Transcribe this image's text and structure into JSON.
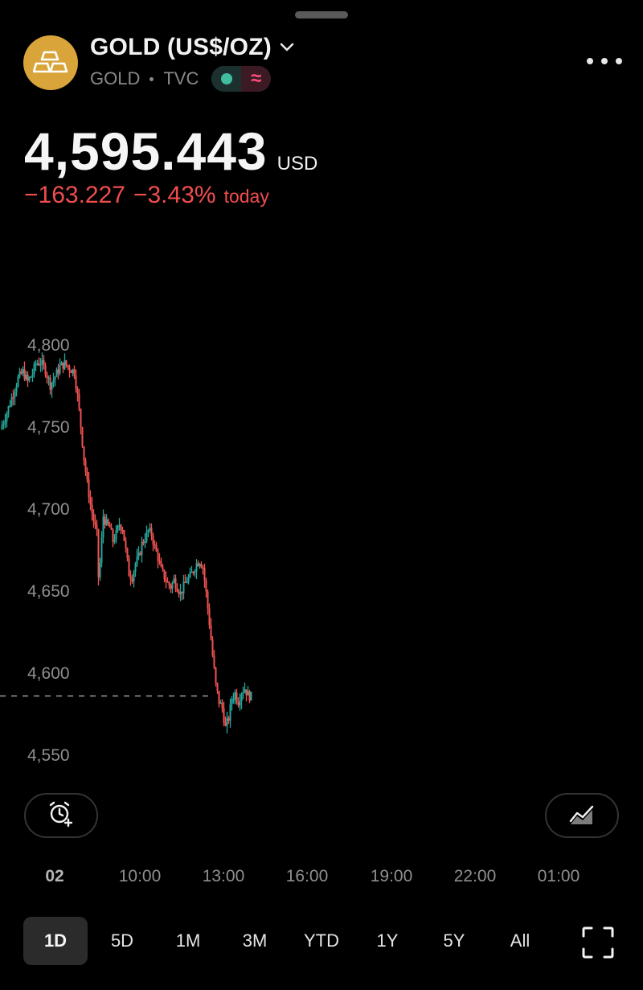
{
  "header": {
    "title": "GOLD (US$/OZ)",
    "symbol": "GOLD",
    "exchange": "TVC",
    "logo_icon": "gold-bars-icon",
    "logo_color": "#d9a53a"
  },
  "quote": {
    "price": "4,595.443",
    "currency": "USD",
    "change_abs": "−163.227",
    "change_pct": "−3.43%",
    "change_suffix": "today",
    "change_color": "#f04d4d"
  },
  "chart_data": {
    "type": "candlestick",
    "y_ticks": [
      "4,800",
      "4,750",
      "4,700",
      "4,650",
      "4,600",
      "4,550"
    ],
    "x_ticks": [
      "02",
      "10:00",
      "13:00",
      "16:00",
      "19:00",
      "22:00",
      "01:00"
    ],
    "last_price_line": 4595.4,
    "up_color": "#26a69a",
    "down_color": "#ef5350",
    "path": [
      [
        0,
        4758
      ],
      [
        4,
        4768
      ],
      [
        8,
        4780
      ],
      [
        11,
        4789
      ],
      [
        14,
        4793
      ],
      [
        17,
        4787
      ],
      [
        20,
        4792
      ],
      [
        22,
        4798
      ],
      [
        25,
        4799
      ],
      [
        28,
        4794
      ],
      [
        31,
        4785
      ],
      [
        34,
        4790
      ],
      [
        37,
        4796
      ],
      [
        40,
        4798
      ],
      [
        43,
        4795
      ],
      [
        46,
        4793
      ],
      [
        48,
        4778
      ],
      [
        50,
        4760
      ],
      [
        52,
        4740
      ],
      [
        54,
        4725
      ],
      [
        56,
        4712
      ],
      [
        58,
        4702
      ],
      [
        60,
        4694
      ],
      [
        61,
        4668
      ],
      [
        62,
        4676
      ],
      [
        64,
        4705
      ],
      [
        66,
        4700
      ],
      [
        68,
        4698
      ],
      [
        70,
        4690
      ],
      [
        72,
        4694
      ],
      [
        74,
        4700
      ],
      [
        76,
        4698
      ],
      [
        78,
        4684
      ],
      [
        80,
        4670
      ],
      [
        82,
        4668
      ],
      [
        84,
        4676
      ],
      [
        86,
        4680
      ],
      [
        88,
        4688
      ],
      [
        90,
        4692
      ],
      [
        92,
        4696
      ],
      [
        94,
        4694
      ],
      [
        96,
        4686
      ],
      [
        98,
        4680
      ],
      [
        100,
        4672
      ],
      [
        102,
        4668
      ],
      [
        104,
        4664
      ],
      [
        106,
        4662
      ],
      [
        108,
        4666
      ],
      [
        110,
        4662
      ],
      [
        112,
        4658
      ],
      [
        114,
        4662
      ],
      [
        116,
        4666
      ],
      [
        118,
        4668
      ],
      [
        120,
        4672
      ],
      [
        122,
        4676
      ],
      [
        124,
        4678
      ],
      [
        126,
        4674
      ],
      [
        128,
        4658
      ],
      [
        130,
        4640
      ],
      [
        132,
        4620
      ],
      [
        134,
        4602
      ],
      [
        136,
        4592
      ],
      [
        138,
        4588
      ],
      [
        140,
        4576
      ],
      [
        142,
        4582
      ],
      [
        144,
        4594
      ],
      [
        146,
        4597
      ],
      [
        148,
        4592
      ],
      [
        150,
        4598
      ],
      [
        152,
        4600
      ],
      [
        154,
        4596
      ],
      [
        156,
        4595
      ]
    ],
    "x_range": [
      0,
      390
    ],
    "y_range": [
      4545,
      4805
    ]
  },
  "controls": {
    "alert_button_icon": "alarm-add-icon",
    "indicator_button_icon": "chart-area-icon",
    "fullscreen_icon": "fullscreen-icon"
  },
  "ranges": [
    {
      "label": "1D",
      "active": true
    },
    {
      "label": "5D",
      "active": false
    },
    {
      "label": "1M",
      "active": false
    },
    {
      "label": "3M",
      "active": false
    },
    {
      "label": "YTD",
      "active": false
    },
    {
      "label": "1Y",
      "active": false
    },
    {
      "label": "5Y",
      "active": false
    },
    {
      "label": "All",
      "active": false
    }
  ]
}
